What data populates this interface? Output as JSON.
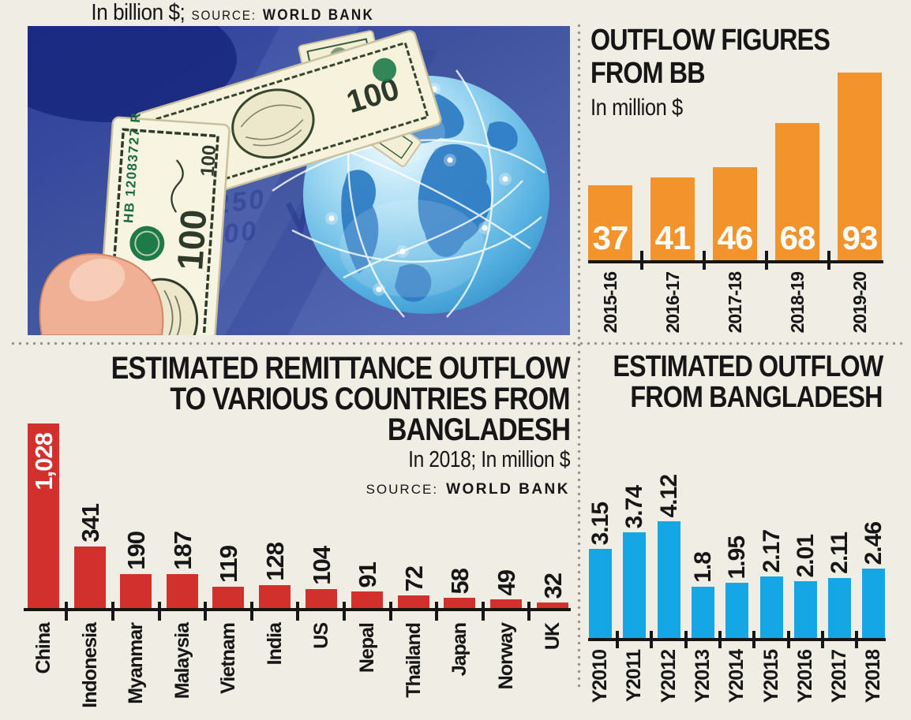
{
  "colors": {
    "background": "#F0EDE4",
    "text": "#161616",
    "divider_dots": "#98948A",
    "orange_bar": "#F3932B",
    "red_bar": "#D2302C",
    "blue_bar": "#15A7E5"
  },
  "photo": {
    "bill_serial": "HB 12083727 R",
    "bill_denomination_100": "100",
    "bill_denomination_10": "10",
    "background_numbers": [
      "4,50",
      "250",
      "000"
    ]
  },
  "chart_data": [
    {
      "id": "outflow-figures-bb",
      "type": "bar",
      "title": "OUTFLOW FIGURES FROM BB",
      "title_lines": [
        "OUTFLOW FIGURES",
        "FROM BB"
      ],
      "subtitle": "In million $",
      "categories": [
        "2015-16",
        "2016-17",
        "2017-18",
        "2018-19",
        "2019-20"
      ],
      "values": [
        37,
        41,
        46,
        68,
        93
      ],
      "value_labels": [
        "37",
        "41",
        "46",
        "68",
        "93"
      ],
      "bar_color": "#F3932B",
      "value_label_color": "#FFFFFF",
      "ylim": [
        0,
        100
      ],
      "legend": "none",
      "grid": false
    },
    {
      "id": "remittance-countries",
      "type": "bar",
      "title": "ESTIMATED REMITTANCE OUTFLOW TO VARIOUS COUNTRIES FROM BANGLADESH",
      "title_lines": [
        "ESTIMATED REMITTANCE OUTFLOW",
        "TO VARIOUS COUNTRIES FROM",
        "BANGLADESH"
      ],
      "subtitle": "In 2018; In million $",
      "source_label": "SOURCE:",
      "source": "WORLD BANK",
      "categories": [
        "China",
        "Indonesia",
        "Myanmar",
        "Malaysia",
        "Vietnam",
        "India",
        "US",
        "Nepal",
        "Thailand",
        "Japan",
        "Norway",
        "UK"
      ],
      "values": [
        1028,
        341,
        190,
        187,
        119,
        128,
        104,
        91,
        72,
        58,
        49,
        32
      ],
      "value_labels": [
        "1,028",
        "341",
        "190",
        "187",
        "119",
        "128",
        "104",
        "91",
        "72",
        "58",
        "49",
        "32"
      ],
      "bar_color": "#D2302C",
      "first_value_label_color": "#FFFFFF",
      "ylim": [
        0,
        1100
      ],
      "legend": "none",
      "grid": false
    },
    {
      "id": "estimated-outflow-bd",
      "type": "bar",
      "title": "ESTIMATED OUTFLOW FROM BANGLADESH",
      "title_lines": [
        "ESTIMATED OUTFLOW",
        "FROM BANGLADESH"
      ],
      "subtitle": "In billion $;",
      "source_label": "SOURCE:",
      "source": "WORLD BANK",
      "categories": [
        "Y2010",
        "Y2011",
        "Y2012",
        "Y2013",
        "Y2014",
        "Y2015",
        "Y2016",
        "Y2017",
        "Y2018"
      ],
      "values": [
        3.15,
        3.74,
        4.12,
        1.8,
        1.95,
        2.17,
        2.01,
        2.11,
        2.46
      ],
      "value_labels": [
        "3.15",
        "3.74",
        "4.12",
        "1.8",
        "1.95",
        "2.17",
        "2.01",
        "2.11",
        "2.46"
      ],
      "bar_color": "#15A7E5",
      "ylim": [
        0,
        4.5
      ],
      "legend": "none",
      "grid": false
    }
  ]
}
